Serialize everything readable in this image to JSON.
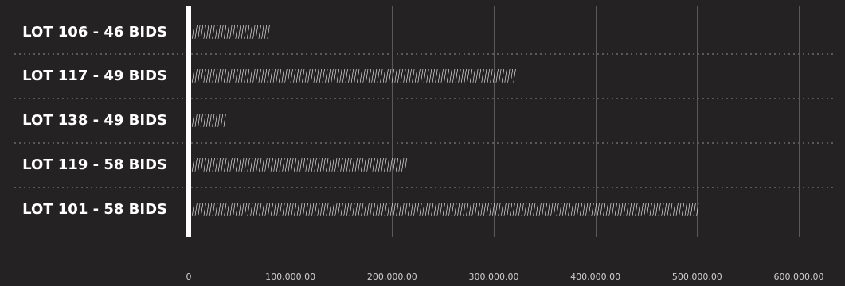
{
  "chart_data": {
    "type": "bar",
    "orientation": "horizontal",
    "categories": [
      "LOT 106 - 46 BIDS",
      "LOT 117 - 49 BIDS",
      "LOT 138 - 49 BIDS",
      "LOT 119 - 58 BIDS",
      "LOT 101 - 58 BIDS"
    ],
    "values": [
      80000,
      322000,
      37000,
      215000,
      502000
    ],
    "xlim": [
      0,
      600000
    ],
    "xticks": [
      0,
      100000,
      200000,
      300000,
      400000,
      500000,
      600000
    ],
    "xtick_labels": [
      "0",
      "100,000.00",
      "200,000.00",
      "300,000.00",
      "400,000.00",
      "500,000.00",
      "600,000.00"
    ],
    "grid": true,
    "row_separators": "dotted",
    "bar_style": "slash-pattern",
    "colors": {
      "background": "#242222",
      "text": "#ffffff",
      "grid": "#5a5858",
      "axis": "#ffffff",
      "tick_text": "#cfcfcf"
    }
  }
}
